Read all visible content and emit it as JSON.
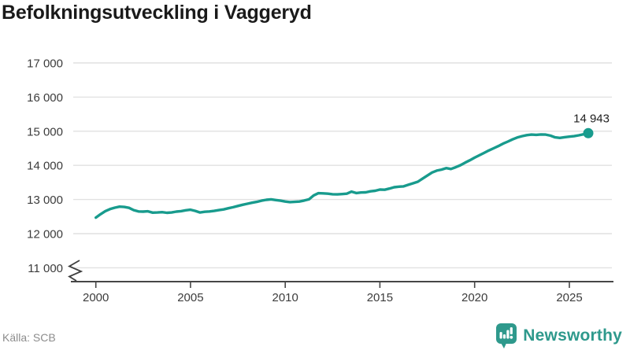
{
  "header": {
    "title": "Befolkningsutveckling i Vaggeryd"
  },
  "chart_data": {
    "type": "line",
    "title": "Befolkningsutveckling i Vaggeryd",
    "xlabel": "",
    "ylabel": "",
    "xlim": [
      2000,
      2026
    ],
    "ylim": [
      11000,
      17000
    ],
    "axis_break_at_bottom": true,
    "grid": "horizontal",
    "legend": "none",
    "end_point_label": "14 943",
    "x_ticks": {
      "values": [
        2000,
        2005,
        2010,
        2015,
        2020,
        2025
      ],
      "labels": [
        "2000",
        "2005",
        "2010",
        "2015",
        "2020",
        "2025"
      ]
    },
    "y_ticks": {
      "values": [
        17000,
        16000,
        15000,
        14000,
        13000,
        12000,
        11000
      ],
      "labels": [
        "17 000",
        "16 000",
        "15 000",
        "14 000",
        "13 000",
        "12 000",
        "11 000"
      ]
    },
    "series": [
      {
        "name": "Befolkning",
        "x": [
          2000.0,
          2000.25,
          2000.5,
          2000.75,
          2001.0,
          2001.25,
          2001.5,
          2001.75,
          2002.0,
          2002.25,
          2002.5,
          2002.75,
          2003.0,
          2003.25,
          2003.5,
          2003.75,
          2004.0,
          2004.25,
          2004.5,
          2004.75,
          2005.0,
          2005.25,
          2005.5,
          2005.75,
          2006.0,
          2006.25,
          2006.5,
          2006.75,
          2007.0,
          2007.25,
          2007.5,
          2007.75,
          2008.0,
          2008.25,
          2008.5,
          2008.75,
          2009.0,
          2009.25,
          2009.5,
          2009.75,
          2010.0,
          2010.25,
          2010.5,
          2010.75,
          2011.0,
          2011.25,
          2011.5,
          2011.75,
          2012.0,
          2012.25,
          2012.5,
          2012.75,
          2013.0,
          2013.25,
          2013.5,
          2013.75,
          2014.0,
          2014.25,
          2014.5,
          2014.75,
          2015.0,
          2015.25,
          2015.5,
          2015.75,
          2016.0,
          2016.25,
          2016.5,
          2016.75,
          2017.0,
          2017.25,
          2017.5,
          2017.75,
          2018.0,
          2018.25,
          2018.5,
          2018.75,
          2019.0,
          2019.25,
          2019.5,
          2019.75,
          2020.0,
          2020.25,
          2020.5,
          2020.75,
          2021.0,
          2021.25,
          2021.5,
          2021.75,
          2022.0,
          2022.25,
          2022.5,
          2022.75,
          2023.0,
          2023.25,
          2023.5,
          2023.75,
          2024.0,
          2024.25,
          2024.5,
          2024.75,
          2025.0,
          2025.25,
          2025.5,
          2025.75,
          2026.0
        ],
        "y": [
          12470,
          12570,
          12660,
          12720,
          12760,
          12790,
          12780,
          12755,
          12690,
          12650,
          12645,
          12655,
          12615,
          12620,
          12630,
          12610,
          12620,
          12645,
          12660,
          12685,
          12700,
          12665,
          12620,
          12640,
          12650,
          12665,
          12690,
          12710,
          12745,
          12775,
          12810,
          12845,
          12875,
          12905,
          12930,
          12965,
          12990,
          13005,
          12985,
          12965,
          12940,
          12925,
          12930,
          12940,
          12970,
          13005,
          13120,
          13185,
          13180,
          13170,
          13155,
          13150,
          13160,
          13170,
          13230,
          13190,
          13205,
          13210,
          13240,
          13255,
          13290,
          13285,
          13320,
          13360,
          13375,
          13385,
          13430,
          13475,
          13520,
          13610,
          13700,
          13790,
          13845,
          13875,
          13920,
          13895,
          13945,
          14005,
          14080,
          14150,
          14225,
          14295,
          14365,
          14435,
          14500,
          14565,
          14635,
          14695,
          14760,
          14815,
          14855,
          14885,
          14900,
          14895,
          14905,
          14900,
          14870,
          14820,
          14805,
          14825,
          14840,
          14855,
          14880,
          14910,
          14943
        ]
      }
    ]
  },
  "footer": {
    "source": "Källa: SCB",
    "brand": "Newsworthy"
  },
  "colors": {
    "accent": "#189b8d",
    "brand": "#2e998c",
    "title": "#1a1a1a",
    "axis_text": "#3c3c3c",
    "grid": "#e1e1e1",
    "source_text": "#8c8c8c"
  }
}
